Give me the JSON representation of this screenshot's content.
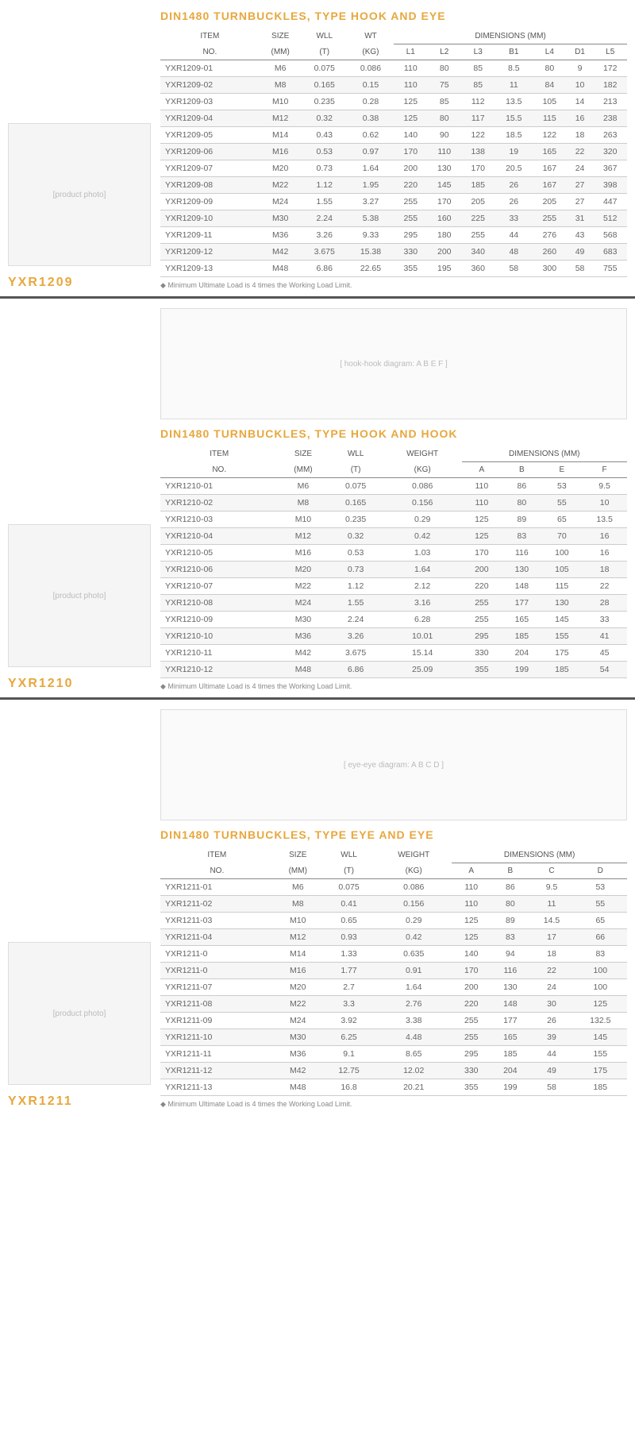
{
  "sections": [
    {
      "code": "YXR1209",
      "title": "DIN1480 TURNBUCKLES, TYPE HOOK AND EYE",
      "note": "Minimum Ultimate Load is 4 times the Working Load Limit.",
      "hasDiagram": false,
      "headerTop": [
        "ITEM",
        "SIZE",
        "WLL",
        "WT",
        "DIMENSIONS (MM)"
      ],
      "headerTopSpan": [
        1,
        1,
        1,
        1,
        7
      ],
      "headerBot": [
        "NO.",
        "(MM)",
        "(T)",
        "(KG)",
        "L1",
        "L2",
        "L3",
        "B1",
        "L4",
        "D1",
        "L5"
      ],
      "rows": [
        [
          "YXR1209-01",
          "M6",
          "0.075",
          "0.086",
          "110",
          "80",
          "85",
          "8.5",
          "80",
          "9",
          "172"
        ],
        [
          "YXR1209-02",
          "M8",
          "0.165",
          "0.15",
          "110",
          "75",
          "85",
          "11",
          "84",
          "10",
          "182"
        ],
        [
          "YXR1209-03",
          "M10",
          "0.235",
          "0.28",
          "125",
          "85",
          "112",
          "13.5",
          "105",
          "14",
          "213"
        ],
        [
          "YXR1209-04",
          "M12",
          "0.32",
          "0.38",
          "125",
          "80",
          "117",
          "15.5",
          "115",
          "16",
          "238"
        ],
        [
          "YXR1209-05",
          "M14",
          "0.43",
          "0.62",
          "140",
          "90",
          "122",
          "18.5",
          "122",
          "18",
          "263"
        ],
        [
          "YXR1209-06",
          "M16",
          "0.53",
          "0.97",
          "170",
          "110",
          "138",
          "19",
          "165",
          "22",
          "320"
        ],
        [
          "YXR1209-07",
          "M20",
          "0.73",
          "1.64",
          "200",
          "130",
          "170",
          "20.5",
          "167",
          "24",
          "367"
        ],
        [
          "YXR1209-08",
          "M22",
          "1.12",
          "1.95",
          "220",
          "145",
          "185",
          "26",
          "167",
          "27",
          "398"
        ],
        [
          "YXR1209-09",
          "M24",
          "1.55",
          "3.27",
          "255",
          "170",
          "205",
          "26",
          "205",
          "27",
          "447"
        ],
        [
          "YXR1209-10",
          "M30",
          "2.24",
          "5.38",
          "255",
          "160",
          "225",
          "33",
          "255",
          "31",
          "512"
        ],
        [
          "YXR1209-11",
          "M36",
          "3.26",
          "9.33",
          "295",
          "180",
          "255",
          "44",
          "276",
          "43",
          "568"
        ],
        [
          "YXR1209-12",
          "M42",
          "3.675",
          "15.38",
          "330",
          "200",
          "340",
          "48",
          "260",
          "49",
          "683"
        ],
        [
          "YXR1209-13",
          "M48",
          "6.86",
          "22.65",
          "355",
          "195",
          "360",
          "58",
          "300",
          "58",
          "755"
        ]
      ]
    },
    {
      "code": "YXR1210",
      "title": "DIN1480 TURNBUCKLES, TYPE HOOK AND HOOK",
      "note": "Minimum Ultimate Load is 4 times the Working Load Limit.",
      "hasDiagram": true,
      "diagramLabel": "[ hook-hook diagram: A B E F ]",
      "headerTop": [
        "ITEM",
        "SIZE",
        "WLL",
        "WEIGHT",
        "DIMENSIONS (MM)"
      ],
      "headerTopSpan": [
        1,
        1,
        1,
        1,
        4
      ],
      "headerBot": [
        "NO.",
        "(MM)",
        "(T)",
        "(KG)",
        "A",
        "B",
        "E",
        "F"
      ],
      "rows": [
        [
          "YXR1210-01",
          "M6",
          "0.075",
          "0.086",
          "110",
          "86",
          "53",
          "9.5"
        ],
        [
          "YXR1210-02",
          "M8",
          "0.165",
          "0.156",
          "110",
          "80",
          "55",
          "10"
        ],
        [
          "YXR1210-03",
          "M10",
          "0.235",
          "0.29",
          "125",
          "89",
          "65",
          "13.5"
        ],
        [
          "YXR1210-04",
          "M12",
          "0.32",
          "0.42",
          "125",
          "83",
          "70",
          "16"
        ],
        [
          "YXR1210-05",
          "M16",
          "0.53",
          "1.03",
          "170",
          "116",
          "100",
          "16"
        ],
        [
          "YXR1210-06",
          "M20",
          "0.73",
          "1.64",
          "200",
          "130",
          "105",
          "18"
        ],
        [
          "YXR1210-07",
          "M22",
          "1.12",
          "2.12",
          "220",
          "148",
          "115",
          "22"
        ],
        [
          "YXR1210-08",
          "M24",
          "1.55",
          "3.16",
          "255",
          "177",
          "130",
          "28"
        ],
        [
          "YXR1210-09",
          "M30",
          "2.24",
          "6.28",
          "255",
          "165",
          "145",
          "33"
        ],
        [
          "YXR1210-10",
          "M36",
          "3.26",
          "10.01",
          "295",
          "185",
          "155",
          "41"
        ],
        [
          "YXR1210-11",
          "M42",
          "3.675",
          "15.14",
          "330",
          "204",
          "175",
          "45"
        ],
        [
          "YXR1210-12",
          "M48",
          "6.86",
          "25.09",
          "355",
          "199",
          "185",
          "54"
        ]
      ]
    },
    {
      "code": "YXR1211",
      "title": "DIN1480 TURNBUCKLES, TYPE EYE AND EYE",
      "note": "Minimum Ultimate Load is 4 times the Working Load Limit.",
      "hasDiagram": true,
      "diagramLabel": "[ eye-eye diagram: A B C D ]",
      "headerTop": [
        "ITEM",
        "SIZE",
        "WLL",
        "WEIGHT",
        "DIMENSIONS (MM)"
      ],
      "headerTopSpan": [
        1,
        1,
        1,
        1,
        4
      ],
      "headerBot": [
        "NO.",
        "(MM)",
        "(T)",
        "(KG)",
        "A",
        "B",
        "C",
        "D"
      ],
      "rows": [
        [
          "YXR1211-01",
          "M6",
          "0.075",
          "0.086",
          "110",
          "86",
          "9.5",
          "53"
        ],
        [
          "YXR1211-02",
          "M8",
          "0.41",
          "0.156",
          "110",
          "80",
          "11",
          "55"
        ],
        [
          "YXR1211-03",
          "M10",
          "0.65",
          "0.29",
          "125",
          "89",
          "14.5",
          "65"
        ],
        [
          "YXR1211-04",
          "M12",
          "0.93",
          "0.42",
          "125",
          "83",
          "17",
          "66"
        ],
        [
          "YXR1211-0",
          "M14",
          "1.33",
          "0.635",
          "140",
          "94",
          "18",
          "83"
        ],
        [
          "YXR1211-0",
          "M16",
          "1.77",
          "0.91",
          "170",
          "116",
          "22",
          "100"
        ],
        [
          "YXR1211-07",
          "M20",
          "2.7",
          "1.64",
          "200",
          "130",
          "24",
          "100"
        ],
        [
          "YXR1211-08",
          "M22",
          "3.3",
          "2.76",
          "220",
          "148",
          "30",
          "125"
        ],
        [
          "YXR1211-09",
          "M24",
          "3.92",
          "3.38",
          "255",
          "177",
          "26",
          "132.5"
        ],
        [
          "YXR1211-10",
          "M30",
          "6.25",
          "4.48",
          "255",
          "165",
          "39",
          "145"
        ],
        [
          "YXR1211-11",
          "M36",
          "9.1",
          "8.65",
          "295",
          "185",
          "44",
          "155"
        ],
        [
          "YXR1211-12",
          "M42",
          "12.75",
          "12.02",
          "330",
          "204",
          "49",
          "175"
        ],
        [
          "YXR1211-13",
          "M48",
          "16.8",
          "20.21",
          "355",
          "199",
          "58",
          "185"
        ]
      ]
    }
  ]
}
